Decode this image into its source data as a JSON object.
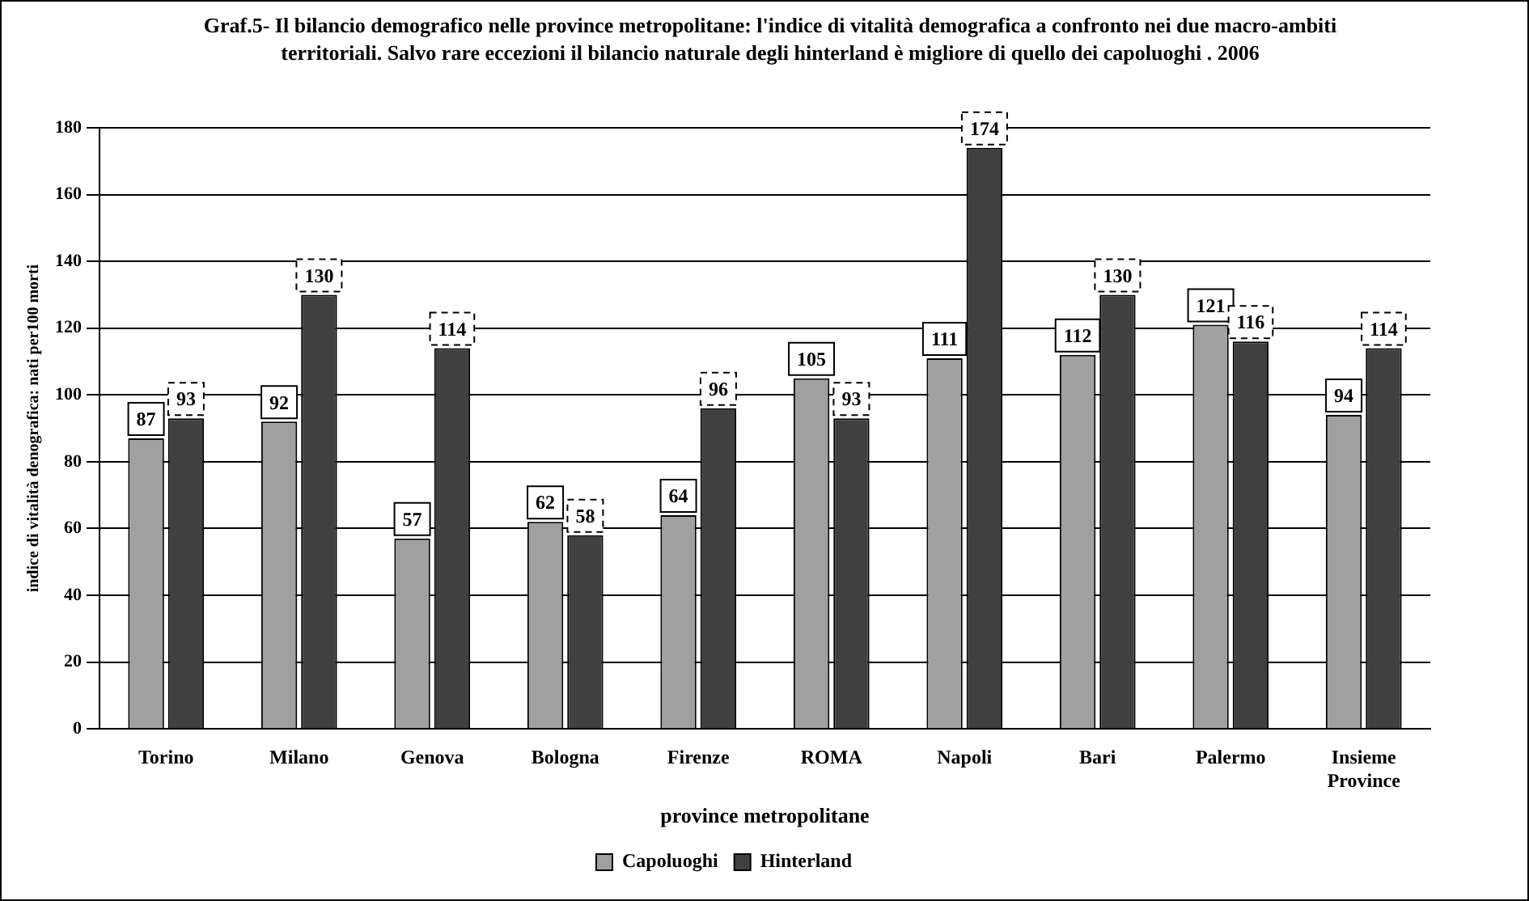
{
  "chart_data": {
    "type": "bar",
    "title": "Graf.5- Il bilancio demografico nelle province metropolitane: l'indice di vitalità demografica a confronto nei due macro-ambiti territoriali. Salvo rare eccezioni il bilancio naturale degli hinterland è migliore di quello dei capoluoghi . 2006",
    "xlabel": "province metropolitane",
    "ylabel": "indice di vitalità denografica: nati per100 morti",
    "categories": [
      "Torino",
      "Milano",
      "Genova",
      "Bologna",
      "Firenze",
      "ROMA",
      "Napoli",
      "Bari",
      "Palermo",
      "Insieme Province"
    ],
    "series": [
      {
        "name": "Capoluoghi",
        "color": "#a0a0a0",
        "values": [
          87,
          92,
          57,
          62,
          64,
          105,
          111,
          112,
          121,
          94
        ]
      },
      {
        "name": "Hinterland",
        "color": "#404040",
        "values": [
          93,
          130,
          114,
          58,
          96,
          93,
          174,
          130,
          116,
          114
        ]
      }
    ],
    "ylim": [
      0,
      180
    ],
    "yticks": [
      0,
      20,
      40,
      60,
      80,
      100,
      120,
      140,
      160,
      180
    ],
    "grid": "y",
    "legend": "bottom",
    "data_labels": true
  }
}
